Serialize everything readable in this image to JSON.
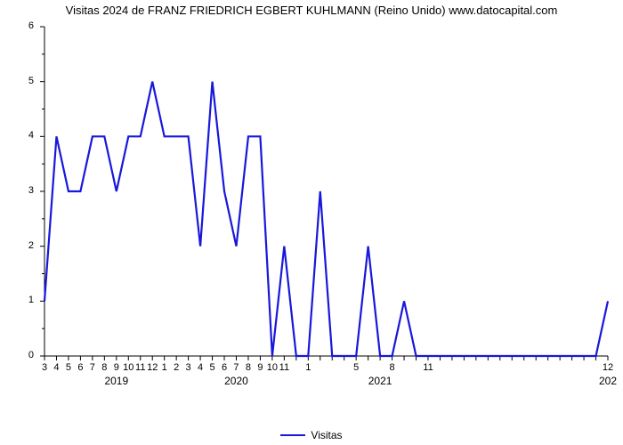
{
  "chart": {
    "type": "line",
    "title": "Visitas 2024 de FRANZ FRIEDRICH EGBERT KUHLMANN (Reino Unido) www.datocapital.com",
    "title_fontsize": 13,
    "background_color": "#ffffff",
    "line_color": "#1818db",
    "line_width": 2.2,
    "y": {
      "label": "",
      "min": 0,
      "max": 6,
      "major_ticks": [
        0,
        1,
        2,
        3,
        4,
        5,
        6
      ],
      "tick_fontsize": 11,
      "axis_color": "#000000"
    },
    "x": {
      "tick_labels": [
        "3",
        "4",
        "5",
        "6",
        "7",
        "8",
        "9",
        "10",
        "11",
        "12",
        "1",
        "2",
        "3",
        "4",
        "5",
        "6",
        "7",
        "8",
        "9",
        "10",
        "11",
        "",
        "1",
        "",
        "",
        "",
        "5",
        "",
        "",
        "8",
        "",
        "",
        "11",
        "",
        "",
        "",
        "",
        "",
        "",
        "",
        "",
        "",
        "",
        "",
        "",
        "",
        "",
        "12"
      ],
      "year_labels": [
        {
          "text": "2019",
          "at_index": 6
        },
        {
          "text": "2020",
          "at_index": 16
        },
        {
          "text": "2021",
          "at_index": 28
        },
        {
          "text": "202",
          "at_index": 47
        }
      ],
      "tick_fontsize": 11,
      "year_fontsize": 12
    },
    "values": [
      1,
      4,
      3,
      3,
      4,
      4,
      3,
      4,
      4,
      5,
      4,
      4,
      4,
      2,
      5,
      3,
      2,
      4,
      4,
      0,
      2,
      0,
      0,
      3,
      0,
      0,
      0,
      2,
      0,
      0,
      1,
      0,
      0,
      0,
      0,
      0,
      0,
      0,
      0,
      0,
      0,
      0,
      0,
      0,
      0,
      0,
      0,
      1
    ],
    "legend": {
      "items": [
        {
          "label": "Visitas",
          "color": "#1818db"
        }
      ],
      "fontsize": 12
    }
  }
}
